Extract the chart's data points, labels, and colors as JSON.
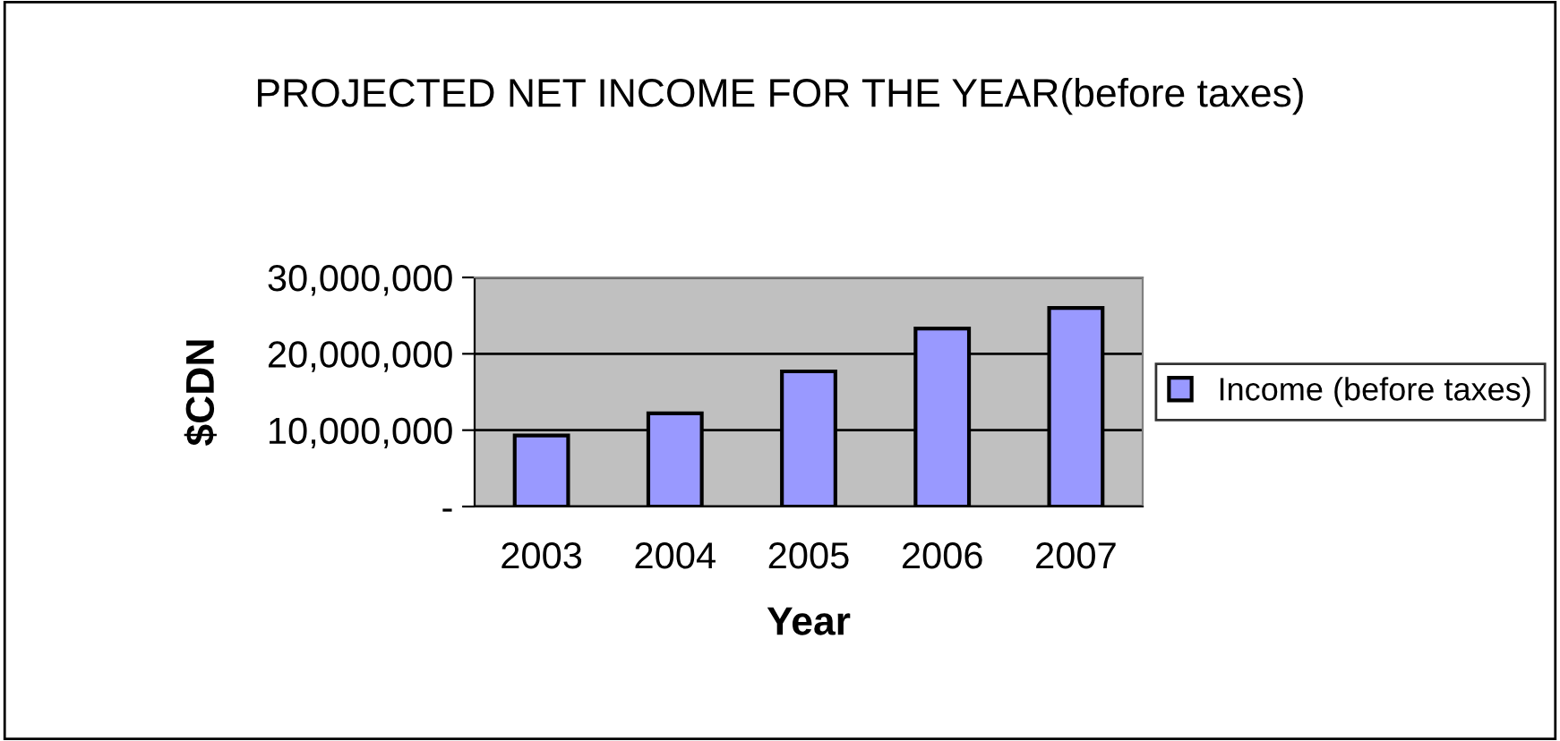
{
  "chart_data": {
    "type": "bar",
    "title": "PROJECTED NET INCOME FOR THE YEAR(before taxes)",
    "xlabel": "Year",
    "ylabel": "$CDN",
    "categories": [
      "2003",
      "2004",
      "2005",
      "2006",
      "2007"
    ],
    "series": [
      {
        "name": "Income (before taxes)",
        "color": "#9999ff",
        "values": [
          9300000,
          12200000,
          17700000,
          23300000,
          26000000
        ]
      }
    ],
    "ylim": [
      0,
      30000000
    ],
    "yticks": [
      {
        "value": 0,
        "label": "-"
      },
      {
        "value": 10000000,
        "label": "10,000,000"
      },
      {
        "value": 20000000,
        "label": "20,000,000"
      },
      {
        "value": 30000000,
        "label": "30,000,000"
      }
    ],
    "grid": "y",
    "legend": "right"
  }
}
